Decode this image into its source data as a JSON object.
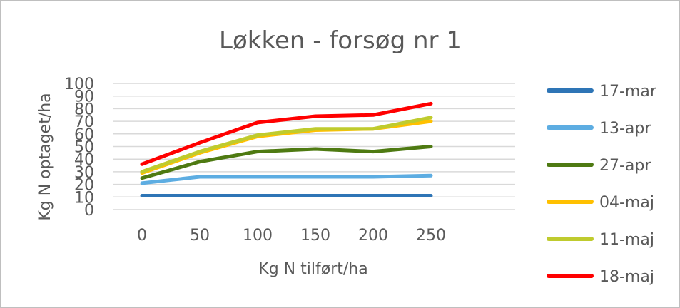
{
  "chart_data": {
    "type": "line",
    "title": "Løkken - forsøg nr 1",
    "xlabel": "Kg N tilført/ha",
    "ylabel": "Kg N optaget/ha",
    "x": [
      0,
      50,
      100,
      150,
      200,
      250
    ],
    "xticks": [
      "0",
      "50",
      "100",
      "150",
      "200",
      "250"
    ],
    "ylim": [
      0,
      100
    ],
    "yticks": [
      "0",
      "10",
      "20",
      "30",
      "40",
      "50",
      "60",
      "70",
      "80",
      "90",
      "100"
    ],
    "grid": true,
    "legend_position": "right",
    "series": [
      {
        "name": "17-mar",
        "color": "#2E75B6",
        "values": [
          11,
          11,
          11,
          11,
          11,
          11
        ]
      },
      {
        "name": "13-apr",
        "color": "#5DADE2",
        "values": [
          21,
          26,
          26,
          26,
          26,
          27
        ]
      },
      {
        "name": "27-apr",
        "color": "#4E7A12",
        "values": [
          25,
          38,
          46,
          48,
          46,
          50
        ]
      },
      {
        "name": "04-maj",
        "color": "#FFC000",
        "values": [
          29,
          45,
          58,
          63,
          64,
          70
        ]
      },
      {
        "name": "11-maj",
        "color": "#BFCB2E",
        "values": [
          30,
          46,
          59,
          64,
          64,
          73
        ]
      },
      {
        "name": "18-maj",
        "color": "#FF0000",
        "values": [
          36,
          53,
          69,
          74,
          75,
          84
        ]
      }
    ]
  }
}
